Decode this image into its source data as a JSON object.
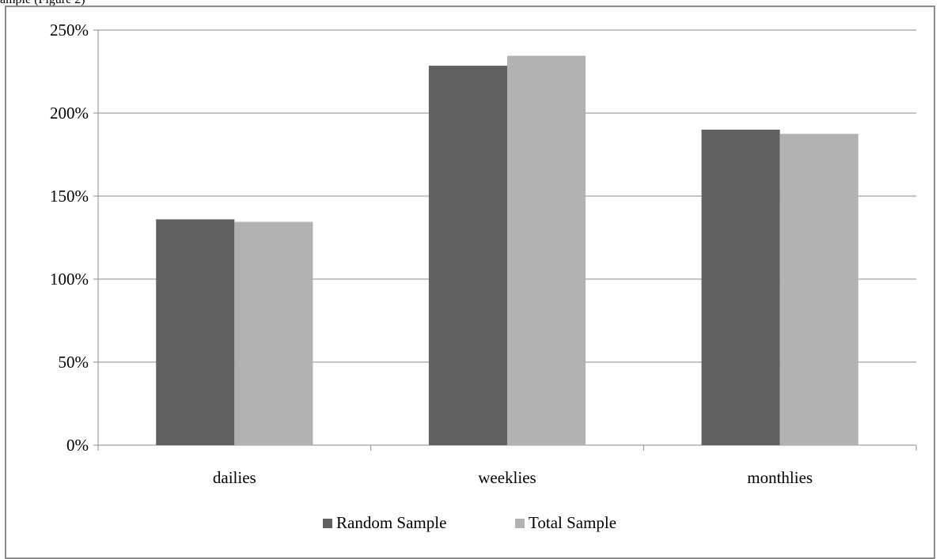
{
  "page": {
    "top_text": "ample (Figure 2)"
  },
  "chart_data": {
    "type": "bar",
    "categories": [
      "dailies",
      "weeklies",
      "monthlies"
    ],
    "series": [
      {
        "name": "Random Sample",
        "values": [
          1.36,
          2.285,
          1.9
        ],
        "color": "#606060"
      },
      {
        "name": "Total Sample",
        "values": [
          1.345,
          2.345,
          1.875
        ],
        "color": "#b2b2b2"
      }
    ],
    "ylim": [
      0,
      2.5
    ],
    "yticks": [
      0,
      0.5,
      1.0,
      1.5,
      2.0,
      2.5
    ],
    "ytick_labels": [
      "0%",
      "50%",
      "100%",
      "150%",
      "200%",
      "250%"
    ],
    "title": "",
    "xlabel": "",
    "ylabel": "",
    "grid": true,
    "legend_position": "bottom"
  }
}
